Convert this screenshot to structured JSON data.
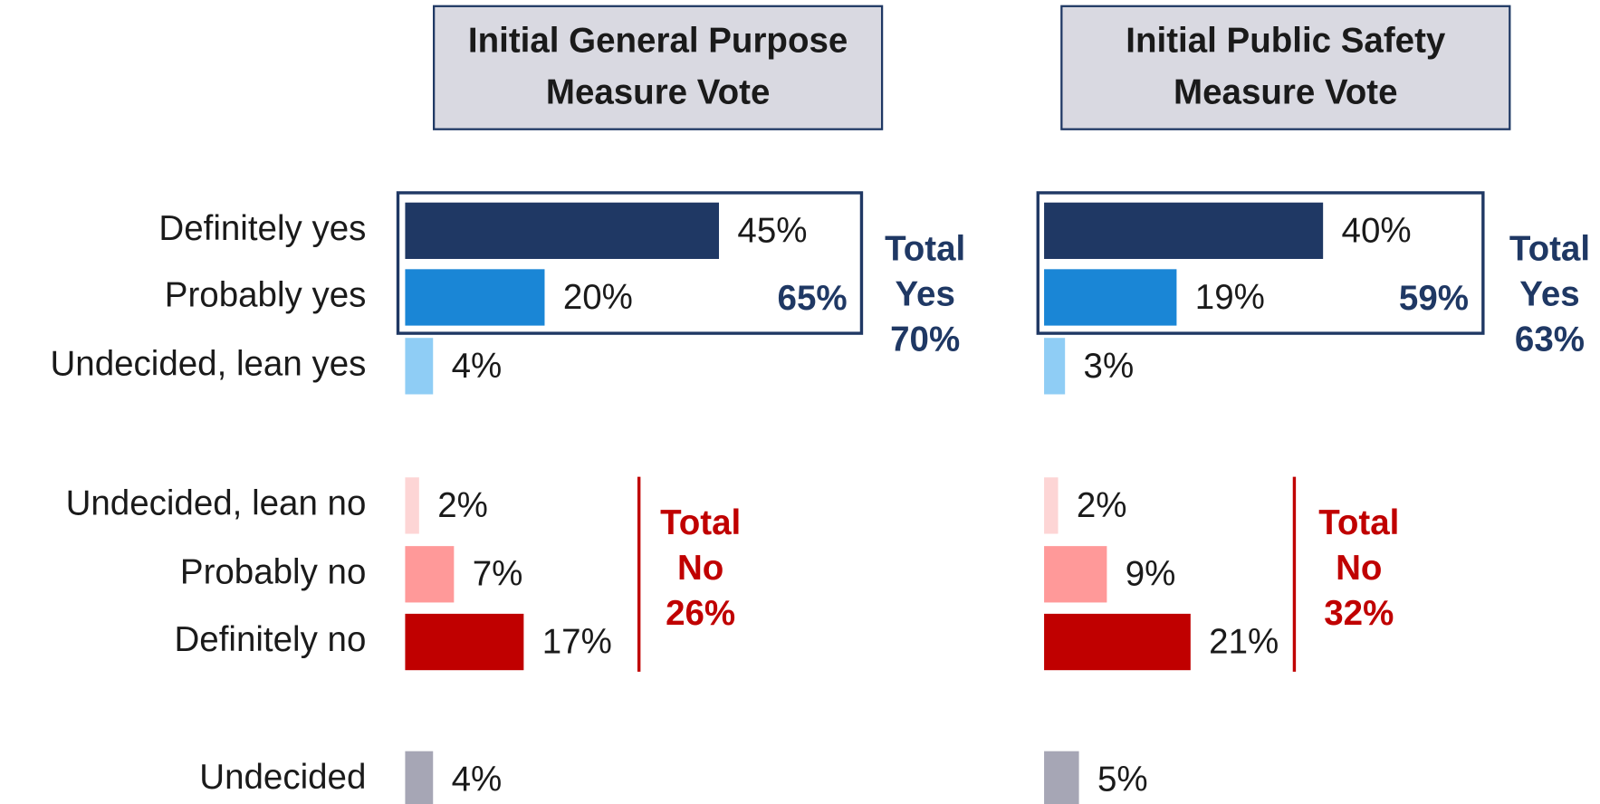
{
  "chart_data": [
    {
      "type": "bar",
      "title": [
        "Initial General Purpose",
        "Measure Vote"
      ],
      "categories": [
        "Definitely yes",
        "Probably yes",
        "Undecided, lean yes",
        "Undecided, lean no",
        "Probably no",
        "Definitely no",
        "Undecided"
      ],
      "values": [
        45,
        20,
        4,
        2,
        7,
        17,
        4
      ],
      "value_labels": [
        "45%",
        "20%",
        "4%",
        "2%",
        "7%",
        "17%",
        "4%"
      ],
      "colors": [
        "#1f3864",
        "#1a86d6",
        "#8fcdf5",
        "#fdd5d5",
        "#ff9999",
        "#c00000",
        "#a6a6b5"
      ],
      "subtotal_yes": "65%",
      "total_yes": [
        "Total",
        "Yes",
        "70%"
      ],
      "total_no": [
        "Total",
        "No",
        "26%"
      ]
    },
    {
      "type": "bar",
      "title": [
        "Initial Public Safety",
        "Measure Vote"
      ],
      "values": [
        40,
        19,
        3,
        2,
        9,
        21,
        5
      ],
      "value_labels": [
        "40%",
        "19%",
        "3%",
        "2%",
        "9%",
        "21%",
        "5%"
      ],
      "colors": [
        "#1f3864",
        "#1a86d6",
        "#8fcdf5",
        "#fdd5d5",
        "#ff9999",
        "#c00000",
        "#a6a6b5"
      ],
      "subtotal_yes": "59%",
      "total_yes": [
        "Total",
        "Yes",
        "63%"
      ],
      "total_no": [
        "Total",
        "No",
        "32%"
      ]
    }
  ]
}
